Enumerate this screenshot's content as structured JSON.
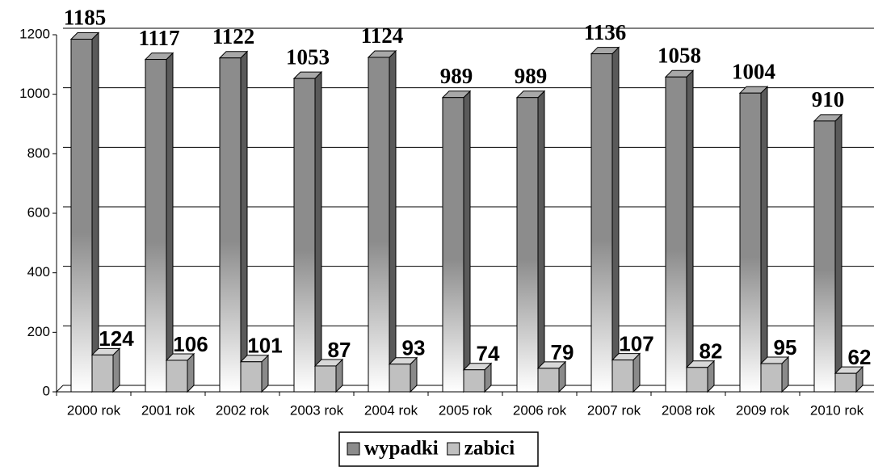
{
  "chart_data": {
    "type": "bar",
    "categories": [
      "2000 rok",
      "2001 rok",
      "2002 rok",
      "2003 rok",
      "2004 rok",
      "2005 rok",
      "2006 rok",
      "2007 rok",
      "2008 rok",
      "2009 rok",
      "2010 rok"
    ],
    "series": [
      {
        "name": "wypadki",
        "color": "#8c8c8c",
        "values": [
          1185,
          1117,
          1122,
          1053,
          1124,
          989,
          989,
          1136,
          1058,
          1004,
          910
        ]
      },
      {
        "name": "zabici",
        "color": "#c0c0c0",
        "values": [
          124,
          106,
          101,
          87,
          93,
          74,
          79,
          107,
          82,
          95,
          62
        ]
      }
    ],
    "ylim": [
      0,
      1200
    ],
    "yticks": [
      0,
      200,
      400,
      600,
      800,
      1000,
      1200
    ],
    "grid": true,
    "legend": "bottom"
  }
}
